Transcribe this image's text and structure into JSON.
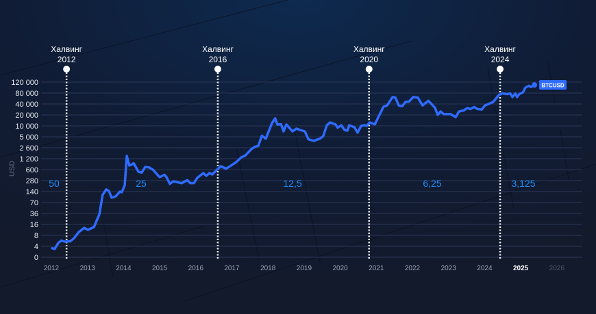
{
  "chart_data": {
    "type": "line",
    "title": "",
    "ylabel": "USD",
    "xlabel": "",
    "y_scale": "custom non-uniform (evenly spaced tick labels)",
    "y_ticks": [
      0,
      4,
      8,
      16,
      36,
      70,
      140,
      280,
      600,
      1200,
      2600,
      5000,
      10000,
      20000,
      40000,
      80000,
      120000
    ],
    "y_tick_labels": [
      "0",
      "4",
      "8",
      "16",
      "36",
      "70",
      "140",
      "280",
      "600",
      "1 200",
      "2 600",
      "5 000",
      "10 000",
      "20 000",
      "40 000",
      "80 000",
      "120 000"
    ],
    "x_ticks": [
      "2012",
      "2013",
      "2014",
      "2015",
      "2016",
      "2017",
      "2018",
      "2019",
      "2020",
      "2021",
      "2022",
      "2023",
      "2024",
      "2025",
      "2026"
    ],
    "x_current": "2025",
    "x_future": "2026",
    "xlim": [
      2012,
      2026
    ],
    "grid": "horizontal",
    "colors": {
      "line": "#2f6bff",
      "halving": "#ffffff",
      "reward": "#1f8fff",
      "badge": "#2f6bff"
    },
    "series": [
      {
        "name": "BTCUSD",
        "points": [
          [
            2012.02,
            3.3
          ],
          [
            2012.09,
            3.0
          ],
          [
            2012.19,
            4.9
          ],
          [
            2012.27,
            5.7
          ],
          [
            2012.38,
            5.4
          ],
          [
            2012.53,
            5.5
          ],
          [
            2012.63,
            6.7
          ],
          [
            2012.76,
            9.9
          ],
          [
            2012.91,
            12.9
          ],
          [
            2013.01,
            11.3
          ],
          [
            2013.18,
            13.5
          ],
          [
            2013.33,
            34
          ],
          [
            2013.42,
            113
          ],
          [
            2013.52,
            160
          ],
          [
            2013.59,
            146
          ],
          [
            2013.67,
            95
          ],
          [
            2013.78,
            103
          ],
          [
            2013.9,
            140
          ],
          [
            2013.95,
            134
          ],
          [
            2014.03,
            206
          ],
          [
            2014.09,
            1456
          ],
          [
            2014.16,
            778
          ],
          [
            2014.24,
            849
          ],
          [
            2014.28,
            900
          ],
          [
            2014.41,
            519
          ],
          [
            2014.5,
            490
          ],
          [
            2014.6,
            714
          ],
          [
            2014.71,
            690
          ],
          [
            2014.81,
            600
          ],
          [
            2015.0,
            355
          ],
          [
            2015.13,
            420
          ],
          [
            2015.19,
            355
          ],
          [
            2015.28,
            226
          ],
          [
            2015.38,
            268
          ],
          [
            2015.61,
            238
          ],
          [
            2015.76,
            290
          ],
          [
            2015.85,
            238
          ],
          [
            2015.95,
            240
          ],
          [
            2016.04,
            338
          ],
          [
            2016.21,
            472
          ],
          [
            2016.29,
            390
          ],
          [
            2016.38,
            472
          ],
          [
            2016.46,
            430
          ],
          [
            2016.59,
            600
          ],
          [
            2016.69,
            745
          ],
          [
            2016.84,
            640
          ],
          [
            2016.97,
            770
          ],
          [
            2017.12,
            968
          ],
          [
            2017.26,
            1324
          ],
          [
            2017.37,
            1500
          ],
          [
            2017.54,
            2371
          ],
          [
            2017.64,
            2770
          ],
          [
            2017.73,
            2900
          ],
          [
            2017.83,
            5360
          ],
          [
            2017.94,
            4470
          ],
          [
            2018.11,
            11900
          ],
          [
            2018.2,
            16100
          ],
          [
            2018.26,
            10900
          ],
          [
            2018.36,
            11100
          ],
          [
            2018.43,
            7070
          ],
          [
            2018.51,
            10900
          ],
          [
            2018.68,
            7070
          ],
          [
            2018.79,
            8400
          ],
          [
            2018.89,
            7700
          ],
          [
            2019.02,
            7070
          ],
          [
            2019.12,
            4300
          ],
          [
            2019.27,
            3940
          ],
          [
            2019.44,
            4500
          ],
          [
            2019.53,
            5220
          ],
          [
            2019.63,
            10400
          ],
          [
            2019.72,
            12400
          ],
          [
            2019.87,
            11000
          ],
          [
            2019.93,
            8880
          ],
          [
            2020.03,
            10400
          ],
          [
            2020.12,
            7700
          ],
          [
            2020.2,
            7400
          ],
          [
            2020.25,
            10400
          ],
          [
            2020.39,
            9200
          ],
          [
            2020.48,
            6500
          ],
          [
            2020.58,
            10000
          ],
          [
            2020.67,
            10400
          ],
          [
            2020.73,
            10000
          ],
          [
            2020.82,
            12400
          ],
          [
            2020.96,
            11000
          ],
          [
            2021.05,
            16800
          ],
          [
            2021.2,
            33600
          ],
          [
            2021.3,
            36500
          ],
          [
            2021.45,
            62000
          ],
          [
            2021.53,
            60000
          ],
          [
            2021.62,
            36500
          ],
          [
            2021.72,
            35000
          ],
          [
            2021.81,
            45600
          ],
          [
            2021.91,
            47000
          ],
          [
            2022.02,
            62000
          ],
          [
            2022.15,
            60000
          ],
          [
            2022.28,
            36500
          ],
          [
            2022.44,
            49000
          ],
          [
            2022.53,
            40000
          ],
          [
            2022.63,
            31000
          ],
          [
            2022.7,
            20000
          ],
          [
            2022.78,
            24800
          ],
          [
            2022.87,
            21000
          ],
          [
            2023.06,
            21000
          ],
          [
            2023.2,
            17500
          ],
          [
            2023.29,
            24800
          ],
          [
            2023.42,
            26500
          ],
          [
            2023.52,
            31000
          ],
          [
            2023.61,
            29000
          ],
          [
            2023.71,
            33000
          ],
          [
            2023.8,
            29000
          ],
          [
            2023.92,
            28000
          ],
          [
            2024.01,
            36500
          ],
          [
            2024.11,
            40000
          ],
          [
            2024.24,
            45600
          ],
          [
            2024.39,
            70000
          ],
          [
            2024.49,
            78000
          ],
          [
            2024.62,
            75000
          ],
          [
            2024.71,
            78000
          ],
          [
            2024.77,
            62000
          ],
          [
            2024.85,
            78000
          ],
          [
            2024.9,
            62000
          ],
          [
            2024.96,
            75000
          ],
          [
            2025.06,
            82000
          ],
          [
            2025.13,
            98000
          ],
          [
            2025.23,
            105000
          ],
          [
            2025.28,
            100000
          ],
          [
            2025.38,
            108000
          ]
        ]
      }
    ],
    "halvings": [
      {
        "title": "Халвинг",
        "year_label": "2012",
        "x": 2012.42
      },
      {
        "title": "Халвинг",
        "year_label": "2016",
        "x": 2016.61
      },
      {
        "title": "Халвинг",
        "year_label": "2020",
        "x": 2020.8
      },
      {
        "title": "Халвинг",
        "year_label": "2024",
        "x": 2024.43
      }
    ],
    "rewards": [
      "50",
      "25",
      "12,5",
      "6,25",
      "3,125"
    ],
    "badge": "BTCUSD"
  }
}
